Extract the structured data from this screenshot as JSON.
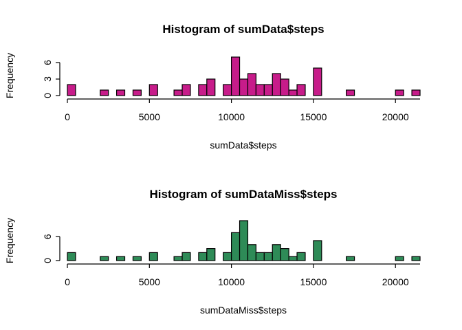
{
  "chart_data": [
    {
      "type": "bar",
      "title": "Histogram of sumData$steps",
      "xlabel": "sumData$steps",
      "ylabel": "Frequency",
      "bin_width": 500,
      "xlim": [
        0,
        21500
      ],
      "ylim": [
        0,
        7
      ],
      "xticks": [
        0,
        5000,
        10000,
        15000,
        20000
      ],
      "yticks": [
        0,
        3,
        6
      ],
      "bar_color": "#c71c8a",
      "bins": [
        {
          "x": 0,
          "count": 2
        },
        {
          "x": 2000,
          "count": 1
        },
        {
          "x": 3000,
          "count": 1
        },
        {
          "x": 4000,
          "count": 1
        },
        {
          "x": 5000,
          "count": 2
        },
        {
          "x": 6500,
          "count": 1
        },
        {
          "x": 7000,
          "count": 2
        },
        {
          "x": 8000,
          "count": 2
        },
        {
          "x": 8500,
          "count": 3
        },
        {
          "x": 9500,
          "count": 2
        },
        {
          "x": 10000,
          "count": 7
        },
        {
          "x": 10500,
          "count": 3
        },
        {
          "x": 11000,
          "count": 4
        },
        {
          "x": 11500,
          "count": 2
        },
        {
          "x": 12000,
          "count": 2
        },
        {
          "x": 12500,
          "count": 4
        },
        {
          "x": 13000,
          "count": 3
        },
        {
          "x": 13500,
          "count": 1
        },
        {
          "x": 14000,
          "count": 2
        },
        {
          "x": 15000,
          "count": 5
        },
        {
          "x": 17000,
          "count": 1
        },
        {
          "x": 20000,
          "count": 1
        },
        {
          "x": 21000,
          "count": 1
        }
      ]
    },
    {
      "type": "bar",
      "title": "Histogram of sumDataMiss$steps",
      "xlabel": "sumDataMiss$steps",
      "ylabel": "Frequency",
      "bin_width": 500,
      "xlim": [
        0,
        21500
      ],
      "ylim": [
        0,
        10
      ],
      "xticks": [
        0,
        5000,
        10000,
        15000,
        20000
      ],
      "yticks": [
        0,
        6
      ],
      "bar_color": "#2e8b57",
      "bins": [
        {
          "x": 0,
          "count": 2
        },
        {
          "x": 2000,
          "count": 1
        },
        {
          "x": 3000,
          "count": 1
        },
        {
          "x": 4000,
          "count": 1
        },
        {
          "x": 5000,
          "count": 2
        },
        {
          "x": 6500,
          "count": 1
        },
        {
          "x": 7000,
          "count": 2
        },
        {
          "x": 8000,
          "count": 2
        },
        {
          "x": 8500,
          "count": 3
        },
        {
          "x": 9500,
          "count": 2
        },
        {
          "x": 10000,
          "count": 7
        },
        {
          "x": 10500,
          "count": 10
        },
        {
          "x": 11000,
          "count": 4
        },
        {
          "x": 11500,
          "count": 2
        },
        {
          "x": 12000,
          "count": 2
        },
        {
          "x": 12500,
          "count": 4
        },
        {
          "x": 13000,
          "count": 3
        },
        {
          "x": 13500,
          "count": 1
        },
        {
          "x": 14000,
          "count": 2
        },
        {
          "x": 15000,
          "count": 5
        },
        {
          "x": 17000,
          "count": 1
        },
        {
          "x": 20000,
          "count": 1
        },
        {
          "x": 21000,
          "count": 1
        }
      ]
    }
  ]
}
